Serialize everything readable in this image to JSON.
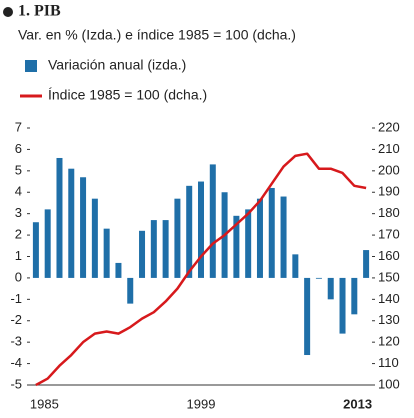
{
  "chart_data": {
    "type": "combo",
    "title": "1. PIB",
    "subtitle": "Var. en % (Izda.) e índice 1985 = 100 (dcha.)",
    "categories": [
      "1985",
      null,
      null,
      null,
      null,
      null,
      null,
      null,
      null,
      null,
      null,
      null,
      null,
      null,
      "1999",
      null,
      null,
      null,
      null,
      null,
      null,
      null,
      null,
      null,
      null,
      null,
      null,
      null,
      "2013"
    ],
    "series": [
      {
        "name": "Variación anual (izda.)",
        "type": "bar",
        "color": "#1f6fa8",
        "values": [
          2.6,
          3.2,
          5.6,
          5.1,
          4.7,
          3.7,
          2.3,
          0.7,
          -1.2,
          2.2,
          2.7,
          2.7,
          3.7,
          4.3,
          4.5,
          5.3,
          4.0,
          2.9,
          3.2,
          3.7,
          4.2,
          3.8,
          1.1,
          -3.6,
          0.0,
          -1.0,
          -2.6,
          -1.7,
          1.3
        ]
      },
      {
        "name": "Índice 1985 = 100 (dcha.)",
        "type": "line",
        "axis": "y2",
        "color": "#d7191c",
        "values": [
          100,
          103,
          109,
          114,
          120,
          124,
          125,
          124,
          127,
          131,
          134,
          139,
          145,
          153,
          160,
          166,
          170,
          175,
          180,
          186,
          194,
          202,
          207,
          208,
          201,
          201,
          199,
          193,
          192
        ]
      }
    ],
    "ylim": [
      -5,
      7
    ],
    "yticks": [
      -5,
      -4,
      -3,
      -2,
      -1,
      0,
      1,
      2,
      3,
      4,
      5,
      6,
      7
    ],
    "y2lim": [
      100,
      220
    ],
    "y2ticks": [
      100,
      110,
      120,
      130,
      140,
      150,
      160,
      170,
      180,
      190,
      200,
      210,
      220
    ],
    "grid": false
  }
}
